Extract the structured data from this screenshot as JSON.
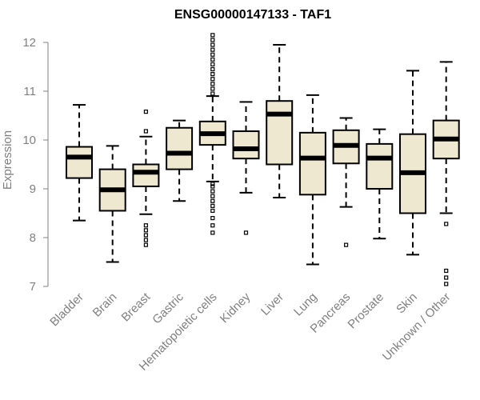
{
  "chart_data": {
    "type": "boxplot",
    "title": "ENSG00000147133 - TAF1",
    "xlabel": "",
    "ylabel": "Expression",
    "ylim": [
      7,
      12
    ],
    "yticks": [
      7,
      8,
      9,
      10,
      11,
      12
    ],
    "grid": false,
    "colors": {
      "box_fill": "#efe8d0",
      "stroke": "#000000",
      "axis": "#808080"
    },
    "categories": [
      "Bladder",
      "Brain",
      "Breast",
      "Gastric",
      "Hematopoietic cells",
      "Kidney",
      "Liver",
      "Lung",
      "Pancreas",
      "Prostate",
      "Skin",
      "Unknown / Other"
    ],
    "boxes": [
      {
        "min": 8.35,
        "q1": 9.22,
        "median": 9.65,
        "q3": 9.86,
        "max": 10.72,
        "outliers": []
      },
      {
        "min": 7.5,
        "q1": 8.55,
        "median": 8.98,
        "q3": 9.4,
        "max": 9.88,
        "outliers": []
      },
      {
        "min": 8.48,
        "q1": 9.05,
        "median": 9.34,
        "q3": 9.5,
        "max": 10.07,
        "outliers": [
          8.25,
          8.15,
          8.05,
          7.95,
          7.85,
          10.18,
          10.58
        ]
      },
      {
        "min": 8.75,
        "q1": 9.4,
        "median": 9.73,
        "q3": 10.25,
        "max": 10.4,
        "outliers": []
      },
      {
        "min": 9.15,
        "q1": 9.9,
        "median": 10.13,
        "q3": 10.38,
        "max": 10.9,
        "outliers": [
          9.1,
          9.05,
          8.95,
          8.85,
          8.75,
          8.65,
          8.55,
          8.4,
          8.25,
          8.1,
          10.95,
          11.05,
          11.15,
          11.25,
          11.35,
          11.45,
          11.55,
          11.65,
          11.75,
          11.85,
          11.95,
          12.05,
          12.15
        ]
      },
      {
        "min": 8.92,
        "q1": 9.62,
        "median": 9.82,
        "q3": 10.18,
        "max": 10.78,
        "outliers": [
          8.1
        ]
      },
      {
        "min": 8.82,
        "q1": 9.5,
        "median": 10.53,
        "q3": 10.8,
        "max": 11.95,
        "outliers": []
      },
      {
        "min": 7.45,
        "q1": 8.88,
        "median": 9.63,
        "q3": 10.15,
        "max": 10.92,
        "outliers": []
      },
      {
        "min": 8.63,
        "q1": 9.52,
        "median": 9.89,
        "q3": 10.2,
        "max": 10.45,
        "outliers": [
          7.85
        ]
      },
      {
        "min": 7.98,
        "q1": 9.0,
        "median": 9.63,
        "q3": 9.92,
        "max": 10.22,
        "outliers": []
      },
      {
        "min": 7.65,
        "q1": 8.5,
        "median": 9.33,
        "q3": 10.12,
        "max": 11.42,
        "outliers": []
      },
      {
        "min": 8.5,
        "q1": 9.62,
        "median": 10.02,
        "q3": 10.4,
        "max": 11.6,
        "outliers": [
          8.28,
          7.32,
          7.18,
          7.05
        ]
      }
    ]
  }
}
